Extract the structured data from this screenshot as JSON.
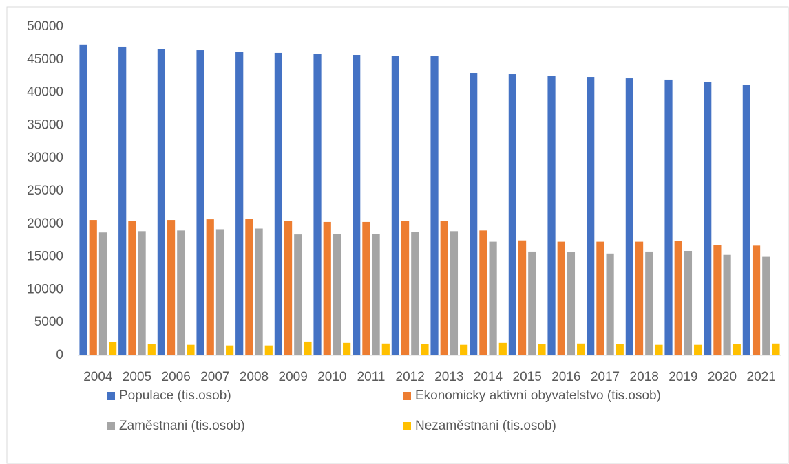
{
  "chart_data": {
    "type": "bar",
    "categories": [
      "2004",
      "2005",
      "2006",
      "2007",
      "2008",
      "2009",
      "2010",
      "2011",
      "2012",
      "2013",
      "2014",
      "2015",
      "2016",
      "2017",
      "2018",
      "2019",
      "2020",
      "2021"
    ],
    "series": [
      {
        "name": "Populace (tis.osob)",
        "color": "#4472c4",
        "values": [
          47300,
          46970,
          46650,
          46440,
          46230,
          46030,
          45820,
          45710,
          45600,
          45500,
          42990,
          42780,
          42570,
          42360,
          42150,
          41950,
          41630,
          41210
        ]
      },
      {
        "name": "Ekonomicky aktivní obyvatelstvo (tis.osob)",
        "color": "#ed7d31",
        "values": [
          20600,
          20500,
          20600,
          20700,
          20800,
          20400,
          20300,
          20300,
          20400,
          20500,
          19000,
          17500,
          17300,
          17300,
          17300,
          17400,
          16800,
          16700
        ]
      },
      {
        "name": "Zaměstnani (tis.osob)",
        "color": "#a5a5a5",
        "values": [
          18700,
          18900,
          19000,
          19200,
          19300,
          18400,
          18500,
          18500,
          18800,
          18900,
          17300,
          15800,
          15700,
          15500,
          15800,
          15900,
          15300,
          15000
        ]
      },
      {
        "name": "Nezaměstnani (tis.osob)",
        "color": "#ffc000",
        "values": [
          2000,
          1700,
          1600,
          1500,
          1500,
          2100,
          1900,
          1800,
          1700,
          1600,
          1900,
          1700,
          1800,
          1700,
          1600,
          1600,
          1700,
          1800
        ]
      }
    ],
    "ylim": [
      0,
      50000
    ],
    "yticks": [
      0,
      5000,
      10000,
      15000,
      20000,
      25000,
      30000,
      35000,
      40000,
      45000,
      50000
    ],
    "grid": false,
    "legend": "bottom"
  }
}
